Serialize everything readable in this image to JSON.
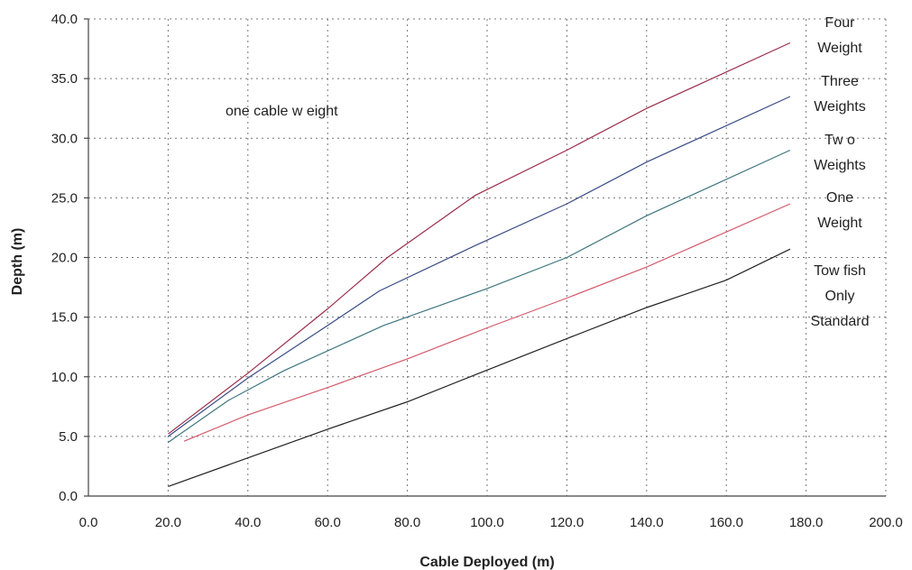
{
  "chart_data": {
    "type": "line",
    "title": "",
    "xlabel": "Cable Deployed (m)",
    "ylabel": "Depth (m)",
    "xlim": [
      0,
      200
    ],
    "ylim": [
      0,
      40
    ],
    "x_ticks": [
      "0.0",
      "20.0",
      "40.0",
      "60.0",
      "80.0",
      "100.0",
      "120.0",
      "140.0",
      "160.0",
      "180.0",
      "200.0"
    ],
    "y_ticks": [
      "0.0",
      "5.0",
      "10.0",
      "15.0",
      "20.0",
      "25.0",
      "30.0",
      "35.0",
      "40.0"
    ],
    "grid": true,
    "annotation": "one cable w eight",
    "series": [
      {
        "name": "Four Weight",
        "label_lines": [
          "Four",
          "Weight"
        ],
        "color": "#9b2d4a",
        "points": [
          [
            20,
            5.2
          ],
          [
            40,
            10.3
          ],
          [
            60,
            15.7
          ],
          [
            75,
            20.0
          ],
          [
            97,
            25.2
          ],
          [
            120,
            29.0
          ],
          [
            140,
            32.5
          ],
          [
            176,
            38.0
          ]
        ]
      },
      {
        "name": "Three Weights",
        "label_lines": [
          "Three",
          "Weights"
        ],
        "color": "#3a4d86",
        "points": [
          [
            20,
            5.0
          ],
          [
            40,
            9.9
          ],
          [
            60,
            14.3
          ],
          [
            73,
            17.2
          ],
          [
            97,
            21.0
          ],
          [
            120,
            24.5
          ],
          [
            140,
            28.0
          ],
          [
            176,
            33.5
          ]
        ]
      },
      {
        "name": "Tw o Weights",
        "label_lines": [
          "Tw o",
          "Weights"
        ],
        "color": "#3f7680",
        "points": [
          [
            20,
            4.5
          ],
          [
            35,
            8.0
          ],
          [
            49,
            10.5
          ],
          [
            74,
            14.3
          ],
          [
            100,
            17.4
          ],
          [
            120,
            20.0
          ],
          [
            140,
            23.5
          ],
          [
            176,
            29.0
          ]
        ]
      },
      {
        "name": "One Weight",
        "label_lines": [
          "One",
          "Weight"
        ],
        "color": "#d35a6a",
        "points": [
          [
            24,
            4.6
          ],
          [
            40,
            6.8
          ],
          [
            60,
            9.1
          ],
          [
            80,
            11.5
          ],
          [
            100,
            14.1
          ],
          [
            120,
            16.6
          ],
          [
            140,
            19.2
          ],
          [
            176,
            24.5
          ]
        ]
      },
      {
        "name": "Tow fish Only Standard",
        "label_lines": [
          "Tow fish",
          "Only",
          "Standard"
        ],
        "color": "#222222",
        "points": [
          [
            20,
            0.8
          ],
          [
            40,
            3.2
          ],
          [
            60,
            5.6
          ],
          [
            80,
            7.9
          ],
          [
            98,
            10.3
          ],
          [
            120,
            13.2
          ],
          [
            140,
            15.8
          ],
          [
            160,
            18.1
          ],
          [
            176,
            20.7
          ]
        ]
      }
    ]
  }
}
